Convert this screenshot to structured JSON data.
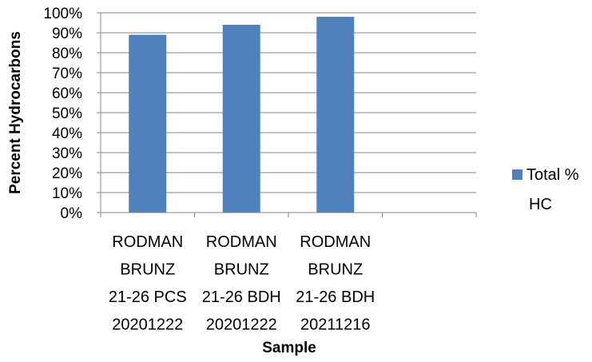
{
  "chart_data": {
    "type": "bar",
    "categories": [
      [
        "RODMAN",
        "BRUNZ",
        "21-26 PCS",
        "20201222"
      ],
      [
        "RODMAN",
        "BRUNZ",
        "21-26 BDH",
        "20201222"
      ],
      [
        "RODMAN",
        "BRUNZ",
        "21-26 BDH",
        "20211216"
      ],
      []
    ],
    "series": [
      {
        "name": "Total % HC",
        "values": [
          89,
          94,
          98,
          null
        ],
        "color": "#4F81BD"
      }
    ],
    "xlabel": "Sample",
    "ylabel": "Percent Hydrocarbons",
    "ylim": [
      0,
      100
    ],
    "yticks": [
      "0%",
      "10%",
      "20%",
      "30%",
      "40%",
      "50%",
      "60%",
      "70%",
      "80%",
      "90%",
      "100%"
    ],
    "legend": {
      "position": "right",
      "label_lines": [
        "Total %",
        "HC"
      ]
    },
    "grid": true,
    "gridline_color": "#868686"
  }
}
